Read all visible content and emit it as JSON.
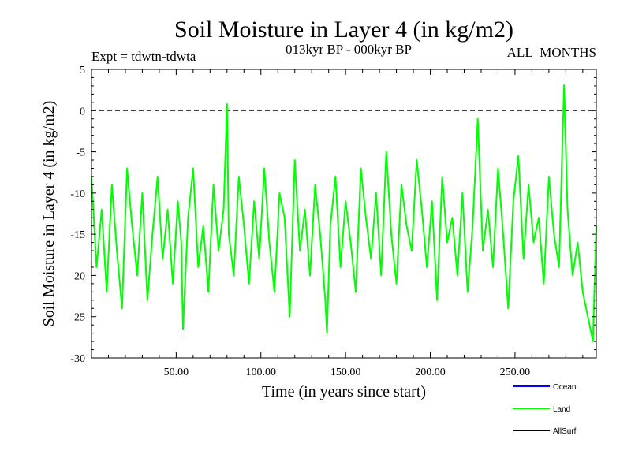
{
  "chart_data": {
    "type": "line",
    "title": "Soil Moisture in Layer 4 (in kg/m2)",
    "subtitle": "013kyr BP - 000kyr BP",
    "experiment_label": "Expt = tdwtn-tdwta",
    "months_label": "ALL_MONTHS",
    "xlabel": "Time (in years since start)",
    "ylabel": "Soil Moisture in Layer 4 (in kg/m2)",
    "xlim": [
      0,
      298
    ],
    "ylim": [
      -30,
      5
    ],
    "xticks": [
      50,
      100,
      150,
      200,
      250
    ],
    "xtick_labels": [
      "50.00",
      "100.00",
      "150.00",
      "200.00",
      "250.00"
    ],
    "yticks": [
      5,
      0,
      -5,
      -10,
      -15,
      -20,
      -25,
      -30
    ],
    "ytick_labels": [
      "5",
      "0",
      "-5",
      "-10",
      "-15",
      "-20",
      "-25",
      "-30"
    ],
    "reference_line": 0,
    "legend": [
      {
        "name": "Ocean",
        "color": "#0000ff"
      },
      {
        "name": "Land",
        "color": "#00ff00"
      },
      {
        "name": "AllSurf",
        "color": "#000000"
      }
    ],
    "series": [
      {
        "name": "Land",
        "color": "#00ff00",
        "x": [
          0,
          3,
          6,
          9,
          12,
          15,
          18,
          21,
          24,
          27,
          30,
          33,
          36,
          39,
          42,
          45,
          48,
          51,
          53,
          54,
          57,
          60,
          63,
          66,
          69,
          72,
          75,
          78,
          80,
          81,
          84,
          87,
          90,
          93,
          96,
          99,
          102,
          105,
          108,
          111,
          114,
          117,
          120,
          123,
          126,
          129,
          132,
          135,
          138,
          139,
          141,
          144,
          147,
          150,
          153,
          156,
          159,
          162,
          165,
          168,
          171,
          174,
          177,
          180,
          183,
          186,
          189,
          192,
          195,
          198,
          201,
          204,
          207,
          210,
          213,
          216,
          219,
          222,
          225,
          228,
          231,
          234,
          237,
          240,
          243,
          246,
          249,
          252,
          255,
          258,
          261,
          264,
          267,
          270,
          273,
          276,
          278,
          279,
          281,
          284,
          287,
          290,
          293,
          296,
          298
        ],
        "values": [
          -8,
          -19,
          -12,
          -22,
          -9,
          -17,
          -24,
          -7,
          -14,
          -20,
          -10,
          -23,
          -15,
          -8,
          -18,
          -12,
          -21,
          -11,
          -16,
          -26.5,
          -13,
          -7,
          -19,
          -14,
          -22,
          -9,
          -17,
          -12,
          0.8,
          -15,
          -20,
          -8,
          -14,
          -21,
          -11,
          -18,
          -7,
          -16,
          -22,
          -10,
          -13,
          -25,
          -6,
          -17,
          -12,
          -20,
          -9,
          -15,
          -23,
          -27,
          -14,
          -8,
          -19,
          -11,
          -16,
          -22,
          -7,
          -13,
          -18,
          -10,
          -20,
          -5,
          -15,
          -21,
          -9,
          -14,
          -17,
          -6,
          -12,
          -19,
          -11,
          -23,
          -8,
          -16,
          -13,
          -20,
          -10,
          -22,
          -14,
          -1,
          -17,
          -12,
          -19,
          -7,
          -15,
          -24,
          -11,
          -5.5,
          -18,
          -9,
          -16,
          -13,
          -21,
          -8,
          -15,
          -19,
          -4,
          3.1,
          -12,
          -20,
          -16,
          -22,
          -25,
          -28,
          -14
        ]
      }
    ]
  }
}
